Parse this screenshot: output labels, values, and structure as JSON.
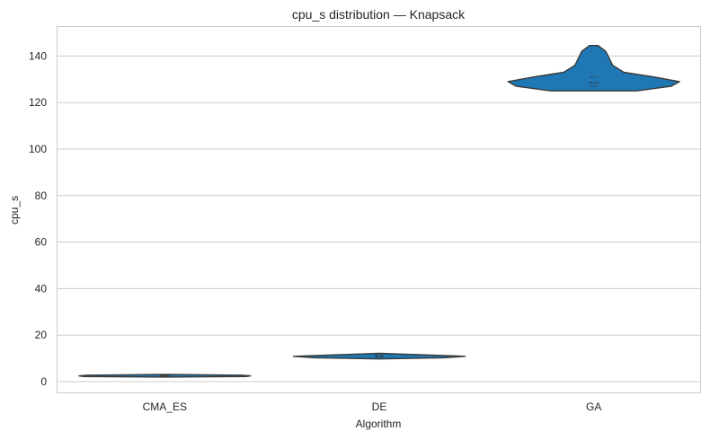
{
  "chart_data": {
    "type": "violin",
    "title": "cpu_s distribution — Knapsack",
    "xlabel": "Algorithm",
    "ylabel": "cpu_s",
    "categories": [
      "CMA_ES",
      "DE",
      "GA"
    ],
    "ylim": [
      -5,
      152.5
    ],
    "yticks": [
      0,
      20,
      40,
      60,
      80,
      100,
      120,
      140
    ],
    "grid": true,
    "violin_color": "#1f77b4",
    "violins": [
      {
        "category": "CMA_ES",
        "min": 2.2,
        "max": 2.9,
        "median": 2.5,
        "q1": 2.4,
        "q3": 2.7,
        "profile": [
          [
            2.0,
            0.0
          ],
          [
            2.2,
            0.95
          ],
          [
            2.5,
            1.0
          ],
          [
            2.8,
            0.9
          ],
          [
            3.1,
            0.0
          ]
        ]
      },
      {
        "category": "DE",
        "min": 10.0,
        "max": 12.0,
        "median": 11.0,
        "q1": 10.6,
        "q3": 11.5,
        "profile": [
          [
            9.8,
            0.0
          ],
          [
            10.3,
            0.75
          ],
          [
            10.9,
            1.0
          ],
          [
            11.6,
            0.45
          ],
          [
            12.2,
            0.0
          ]
        ]
      },
      {
        "category": "GA",
        "min": 125,
        "max": 145,
        "median": 128.5,
        "q1": 127,
        "q3": 131,
        "profile": [
          [
            125,
            0.5
          ],
          [
            127,
            0.9
          ],
          [
            129,
            1.0
          ],
          [
            131,
            0.7
          ],
          [
            133,
            0.35
          ],
          [
            136,
            0.22
          ],
          [
            139,
            0.18
          ],
          [
            142,
            0.14
          ],
          [
            144.5,
            0.05
          ]
        ]
      }
    ]
  }
}
